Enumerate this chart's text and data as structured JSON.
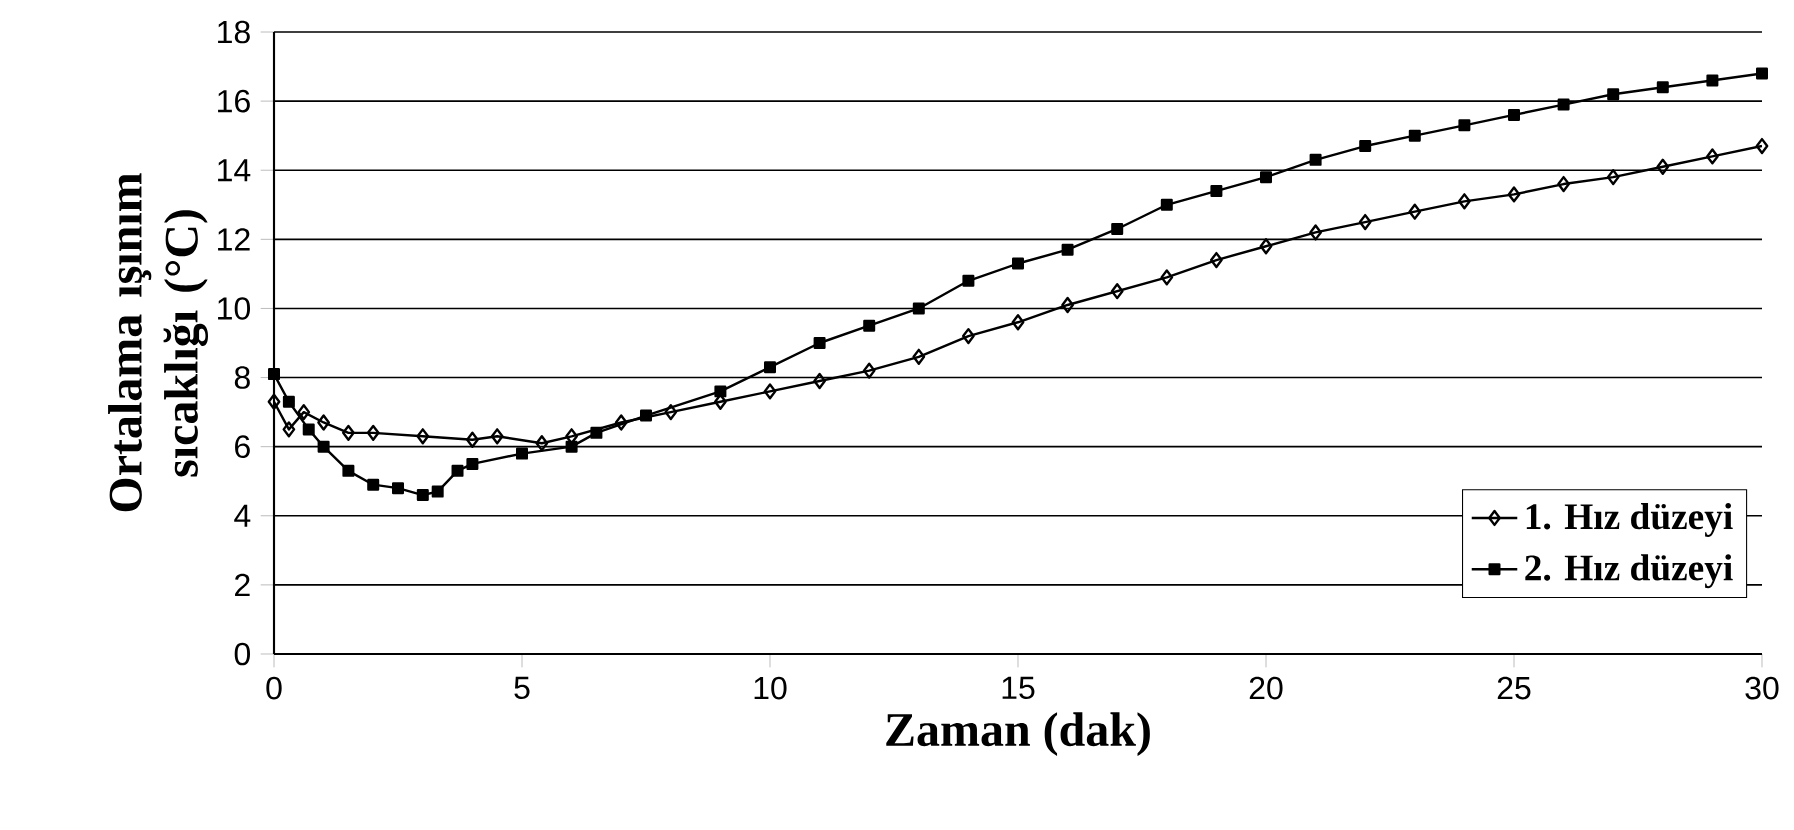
{
  "chart_data": {
    "type": "line",
    "xlabel": "Zaman (dak)",
    "ylabel": "Ortalama ışınım sıcaklığı (°C)",
    "xlim": [
      0,
      30
    ],
    "xticks": [
      0,
      5,
      10,
      15,
      20,
      25,
      30
    ],
    "ylim": [
      0,
      18
    ],
    "yticks": [
      0,
      2,
      4,
      6,
      8,
      10,
      12,
      14,
      16,
      18
    ],
    "grid": "y",
    "legend": "bottom right",
    "series": [
      {
        "name": "1. Hız düzeyi",
        "color": "#000000",
        "marker": "diamond",
        "x": [
          0,
          0.3,
          0.6,
          1,
          1.5,
          2,
          3,
          4,
          4.5,
          5.4,
          6,
          7,
          8,
          9,
          10,
          11,
          12,
          13,
          14,
          15,
          16,
          17,
          18,
          19,
          20,
          21,
          22,
          23,
          24,
          25,
          26,
          27,
          28,
          29,
          30
        ],
        "values": [
          7.3,
          6.5,
          7.0,
          6.7,
          6.4,
          6.4,
          6.3,
          6.2,
          6.3,
          6.1,
          6.3,
          6.7,
          7.0,
          7.3,
          7.6,
          7.9,
          8.2,
          8.6,
          9.2,
          9.6,
          10.1,
          10.5,
          10.9,
          11.4,
          11.8,
          12.2,
          12.5,
          12.8,
          13.1,
          13.3,
          13.6,
          13.8,
          14.1,
          14.4,
          14.7
        ]
      },
      {
        "name": "2. Hız düzeyi",
        "color": "#000000",
        "marker": "square",
        "x": [
          0,
          0.3,
          0.7,
          1,
          1.5,
          2,
          2.5,
          3,
          3.3,
          3.7,
          4,
          5,
          6,
          6.5,
          7.5,
          9,
          10,
          11,
          12,
          13,
          14,
          15,
          16,
          17,
          18,
          19,
          20,
          21,
          22,
          23,
          24,
          25,
          26,
          27,
          28,
          29,
          30
        ],
        "values": [
          8.1,
          7.3,
          6.5,
          6.0,
          5.3,
          4.9,
          4.8,
          4.6,
          4.7,
          5.3,
          5.5,
          5.8,
          6.0,
          6.4,
          6.9,
          7.6,
          8.3,
          9.0,
          9.5,
          10.0,
          10.8,
          11.3,
          11.7,
          12.3,
          13.0,
          13.4,
          13.8,
          14.3,
          14.7,
          15.0,
          15.3,
          15.6,
          15.9,
          16.2,
          16.4,
          16.6,
          16.8
        ]
      }
    ]
  }
}
